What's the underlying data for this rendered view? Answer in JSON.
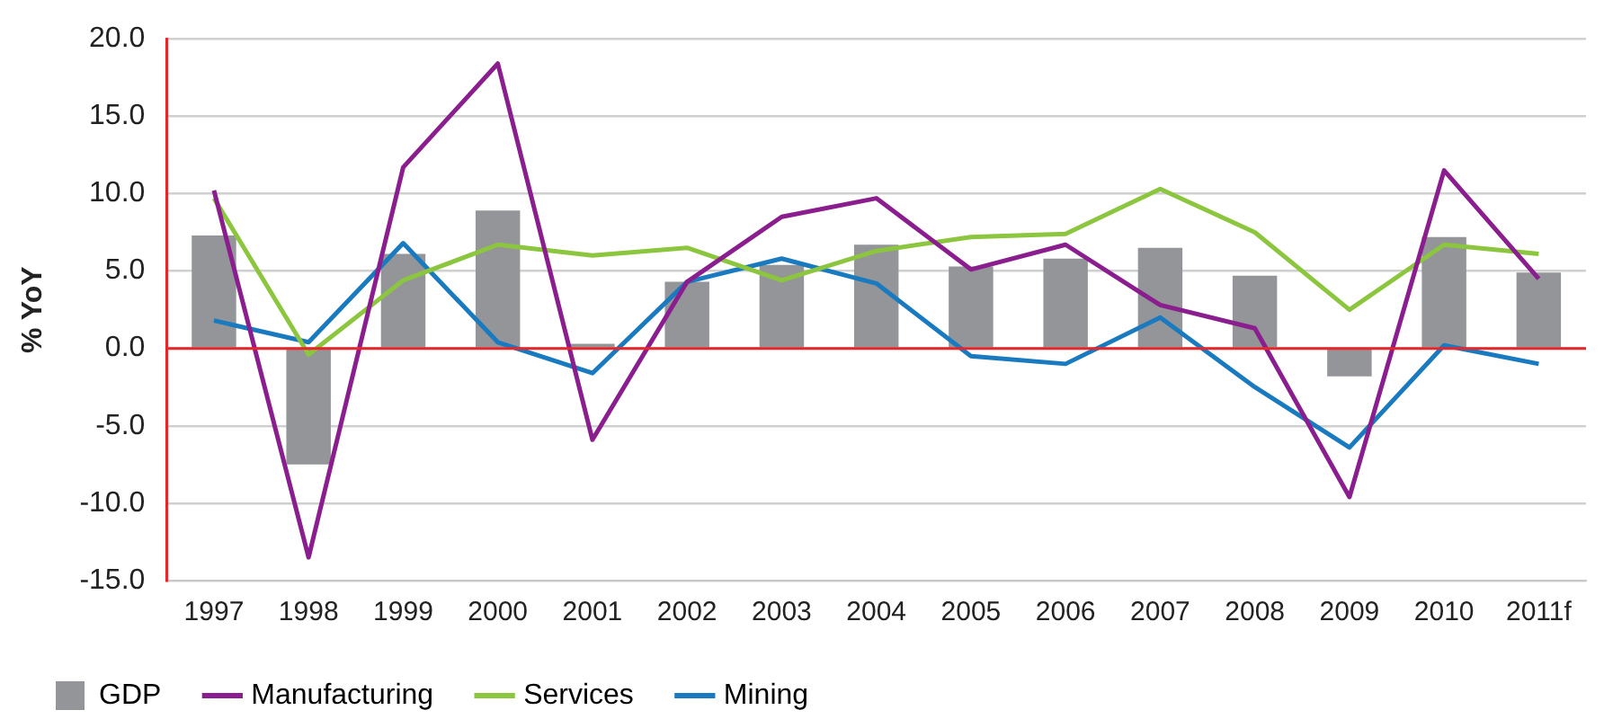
{
  "chart_data": {
    "type": "bar",
    "ylabel": "% YoY",
    "categories": [
      "1997",
      "1998",
      "1999",
      "2000",
      "2001",
      "2002",
      "2003",
      "2004",
      "2005",
      "2006",
      "2007",
      "2008",
      "2009",
      "2010",
      "2011f"
    ],
    "series": [
      {
        "name": "GDP",
        "color": "#939598",
        "values": [
          7.3,
          -7.5,
          6.1,
          8.9,
          0.3,
          4.3,
          5.4,
          6.7,
          5.3,
          5.8,
          6.5,
          4.7,
          -1.8,
          7.2,
          4.9
        ]
      },
      {
        "name": "Manufacturing",
        "type": "line",
        "color": "#8b1e8e",
        "values": [
          10.2,
          -13.5,
          11.7,
          18.4,
          -5.9,
          4.3,
          8.5,
          9.7,
          5.1,
          6.7,
          2.8,
          1.3,
          -9.6,
          11.5,
          4.5
        ]
      },
      {
        "name": "Services",
        "type": "line",
        "color": "#8cc63f",
        "values": [
          9.7,
          -0.4,
          4.4,
          6.7,
          6.0,
          6.5,
          4.4,
          6.3,
          7.2,
          7.4,
          10.3,
          7.5,
          2.5,
          6.7,
          6.1
        ]
      },
      {
        "name": "Mining",
        "type": "line",
        "color": "#1a7abf",
        "values": [
          1.8,
          0.4,
          6.8,
          0.4,
          -1.6,
          4.3,
          5.8,
          4.2,
          -0.5,
          -1.0,
          2.0,
          -2.5,
          -6.4,
          0.2,
          -1.0
        ]
      }
    ],
    "ylim": [
      -15,
      20
    ],
    "yticks": [
      {
        "value": -15,
        "label": "-15.0"
      },
      {
        "value": -10,
        "label": "-10.0"
      },
      {
        "value": -5,
        "label": "-5.0"
      },
      {
        "value": 0,
        "label": "0.0"
      },
      {
        "value": 5,
        "label": "5.0"
      },
      {
        "value": 10,
        "label": "10.0"
      },
      {
        "value": 15,
        "label": "15.0"
      },
      {
        "value": 20,
        "label": "20.0"
      }
    ],
    "ref_lines": [
      {
        "axis": "y",
        "value": 0,
        "color": "#e8262a"
      }
    ],
    "grid": "y",
    "legend": "bottom",
    "marker": "none",
    "line_style": "solid"
  }
}
